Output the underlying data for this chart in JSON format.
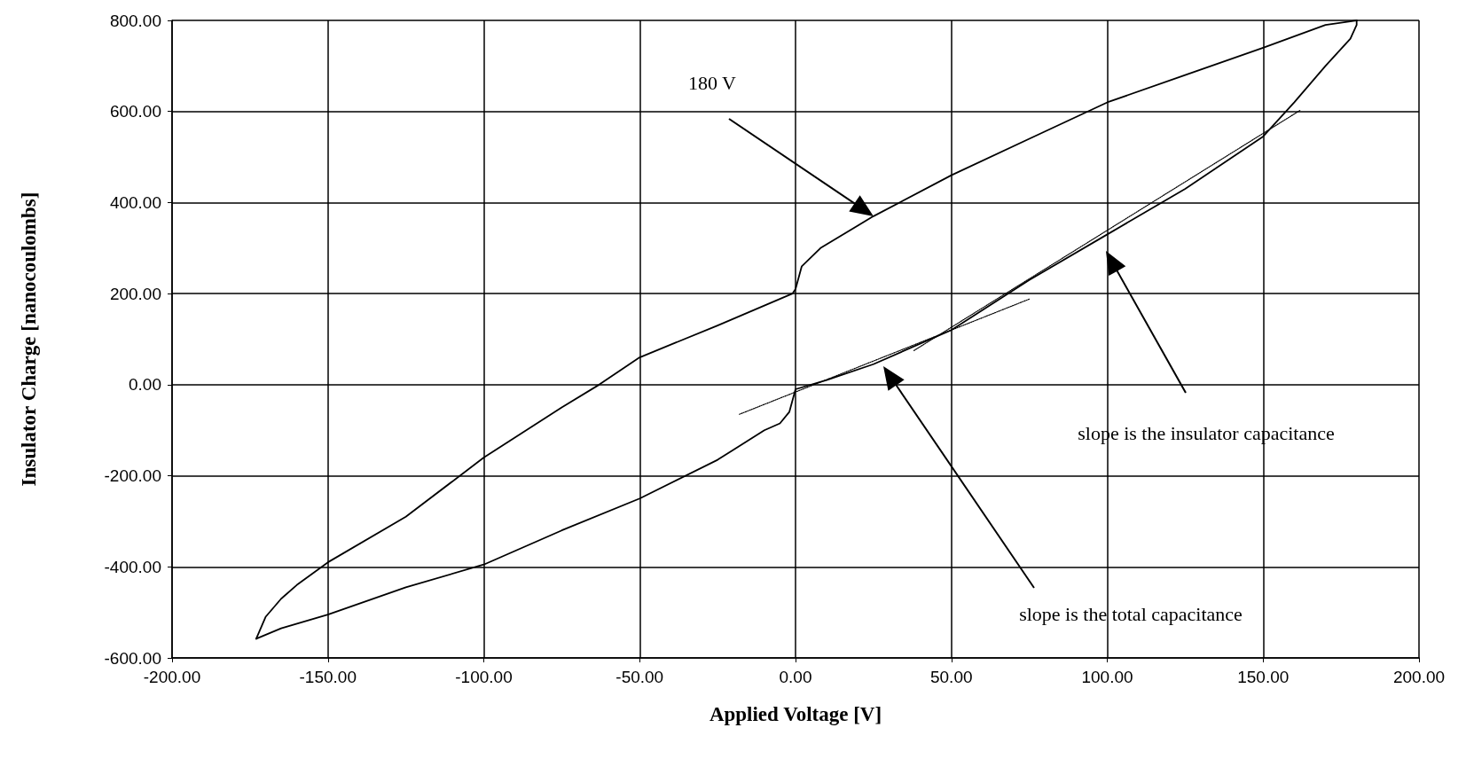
{
  "chart_data": {
    "type": "line",
    "xlabel": "Applied Voltage [V]",
    "ylabel": "Insulator Charge [nanocoulombs]",
    "xlim": [
      -200,
      200
    ],
    "xticks": [
      {
        "value": -200,
        "label": "-200.00"
      },
      {
        "value": -150,
        "label": "-150.00"
      },
      {
        "value": -100,
        "label": "-100.00"
      },
      {
        "value": -50,
        "label": "-50.00"
      },
      {
        "value": 0,
        "label": "0.00"
      },
      {
        "value": 50,
        "label": "50.00"
      },
      {
        "value": 100,
        "label": "100.00"
      },
      {
        "value": 150,
        "label": "150.00"
      },
      {
        "value": 200,
        "label": "200.00"
      }
    ],
    "ylim": [
      -600,
      800
    ],
    "yticks": [
      {
        "value": -600,
        "label": "-600.00"
      },
      {
        "value": -400,
        "label": "-400.00"
      },
      {
        "value": -200,
        "label": "-200.00"
      },
      {
        "value": 0,
        "label": "0.00"
      },
      {
        "value": 200,
        "label": "200.00"
      },
      {
        "value": 400,
        "label": "400.00"
      },
      {
        "value": 600,
        "label": "600.00"
      },
      {
        "value": 800,
        "label": "800.00"
      }
    ],
    "grid": true,
    "marker": "none",
    "series": [
      {
        "color": "#000000",
        "line_style": "solid",
        "x": [
          -173,
          -170,
          -165,
          -160,
          -150,
          -125,
          -100,
          -75,
          -63,
          -50,
          -25,
          -1,
          0,
          2,
          8,
          25,
          50,
          75,
          100,
          125,
          150,
          170,
          180
        ],
        "values": [
          -558,
          -510,
          -470,
          -440,
          -390,
          -290,
          -160,
          -50,
          0,
          60,
          130,
          200,
          210,
          260,
          300,
          370,
          460,
          540,
          620,
          680,
          740,
          790,
          800
        ]
      },
      {
        "color": "#000000",
        "line_style": "solid",
        "x": [
          180,
          180,
          178,
          170,
          160,
          150,
          125,
          100,
          75,
          50,
          25,
          10,
          0,
          -2,
          -5,
          -10,
          -25,
          -50,
          -75,
          -100,
          -125,
          -150,
          -165,
          -173
        ],
        "values": [
          800,
          790,
          760,
          700,
          620,
          545,
          430,
          330,
          230,
          120,
          45,
          10,
          -10,
          -60,
          -85,
          -100,
          -165,
          -250,
          -320,
          -395,
          -445,
          -505,
          -535,
          -558
        ]
      },
      {
        "color": "#000000",
        "line_style": "dotted",
        "x": [
          -18,
          75
        ],
        "values": [
          -65,
          188
        ]
      },
      {
        "color": "#000000",
        "line_style": "dotted",
        "x": [
          38,
          162
        ],
        "values": [
          75,
          603
        ]
      }
    ],
    "annotations": [
      "180 V",
      "slope is the insulator capacitance",
      "slope is the total capacitance"
    ]
  }
}
